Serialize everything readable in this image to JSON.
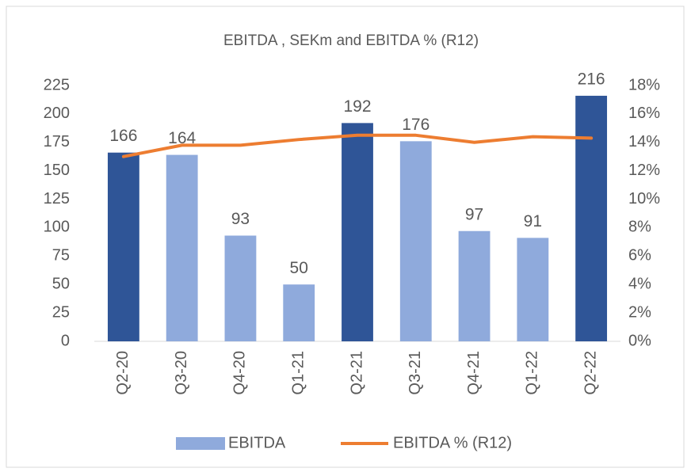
{
  "chart_data": {
    "type": "bar-line",
    "title": "EBITDA , SEKm and EBITDA % (R12)",
    "categories": [
      "Q2-20",
      "Q3-20",
      "Q4-20",
      "Q1-21",
      "Q2-21",
      "Q3-21",
      "Q4-21",
      "Q1-22",
      "Q2-22"
    ],
    "series": [
      {
        "name": "EBITDA",
        "type": "bar",
        "color": "#8faadc",
        "colors": [
          "#2f5597",
          "#8faadc",
          "#8faadc",
          "#8faadc",
          "#2f5597",
          "#8faadc",
          "#8faadc",
          "#8faadc",
          "#2f5597"
        ],
        "values": [
          166,
          164,
          93,
          50,
          192,
          176,
          97,
          91,
          216
        ]
      },
      {
        "name": "EBITDA % (R12)",
        "type": "line",
        "color": "#ed7d31",
        "axis": "y2",
        "values": [
          13.0,
          13.8,
          13.8,
          14.2,
          14.5,
          14.5,
          14.0,
          14.4,
          14.3
        ]
      }
    ],
    "ylim": [
      0,
      225
    ],
    "yticks": [
      0,
      25,
      50,
      75,
      100,
      125,
      150,
      175,
      200,
      225
    ],
    "y2lim": [
      0,
      18
    ],
    "y2ticks": [
      {
        "value": 0,
        "label": "0%"
      },
      {
        "value": 2,
        "label": "2%"
      },
      {
        "value": 4,
        "label": "4%"
      },
      {
        "value": 6,
        "label": "6%"
      },
      {
        "value": 8,
        "label": "8%"
      },
      {
        "value": 10,
        "label": "10%"
      },
      {
        "value": 12,
        "label": "12%"
      },
      {
        "value": 14,
        "label": "14%"
      },
      {
        "value": 16,
        "label": "16%"
      },
      {
        "value": 18,
        "label": "18%"
      }
    ],
    "grid": false,
    "legend": "bottom"
  }
}
